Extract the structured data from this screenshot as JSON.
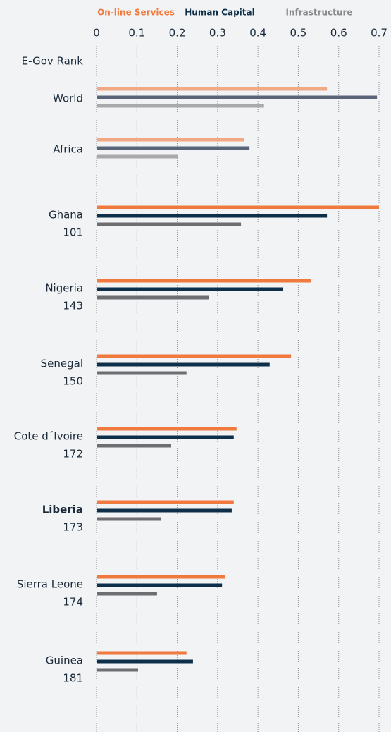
{
  "chart_data": {
    "type": "barh",
    "rank_label": "E-Gov Rank",
    "categories": [
      "World",
      "Africa",
      "Ghana",
      "Nigeria",
      "Senegal",
      "Cote d´Ivoire",
      "Liberia",
      "Sierra Leone",
      "Guinea"
    ],
    "ranks": [
      null,
      null,
      101,
      143,
      150,
      172,
      173,
      174,
      181
    ],
    "highlight_index": 6,
    "series": [
      {
        "name": "On-line Services",
        "color": "#f07a3e",
        "colors": [
          "#f2a882",
          "#f2a882",
          "#f07a3e",
          "#f07a3e",
          "#f07a3e",
          "#f07a3e",
          "#f07a3e",
          "#f07a3e",
          "#f07a3e"
        ],
        "values": [
          0.571,
          0.365,
          0.7,
          0.531,
          0.482,
          0.347,
          0.34,
          0.318,
          0.223
        ]
      },
      {
        "name": "Human Capital",
        "color": "#0d2f4a",
        "colors": [
          "#5a6478",
          "#5a6478",
          "#0d2f4a",
          "#0d2f4a",
          "#0d2f4a",
          "#0d2f4a",
          "#0d2f4a",
          "#0d2f4a",
          "#0d2f4a"
        ],
        "values": [
          0.695,
          0.379,
          0.571,
          0.462,
          0.429,
          0.34,
          0.335,
          0.311,
          0.239
        ]
      },
      {
        "name": "Infrastructure",
        "color": "#8a8a8e",
        "colors": [
          "#a9a9ac",
          "#a9a9ac",
          "#6e6e72",
          "#6e6e72",
          "#6e6e72",
          "#6e6e72",
          "#6e6e72",
          "#6e6e72",
          "#6e6e72"
        ],
        "values": [
          0.415,
          0.202,
          0.358,
          0.279,
          0.223,
          0.185,
          0.159,
          0.15,
          0.103
        ]
      }
    ],
    "xlim": [
      0,
      0.7
    ],
    "xticks": [
      0,
      0.1,
      0.2,
      0.3,
      0.4,
      0.5,
      0.6,
      0.7
    ],
    "grid": true
  }
}
